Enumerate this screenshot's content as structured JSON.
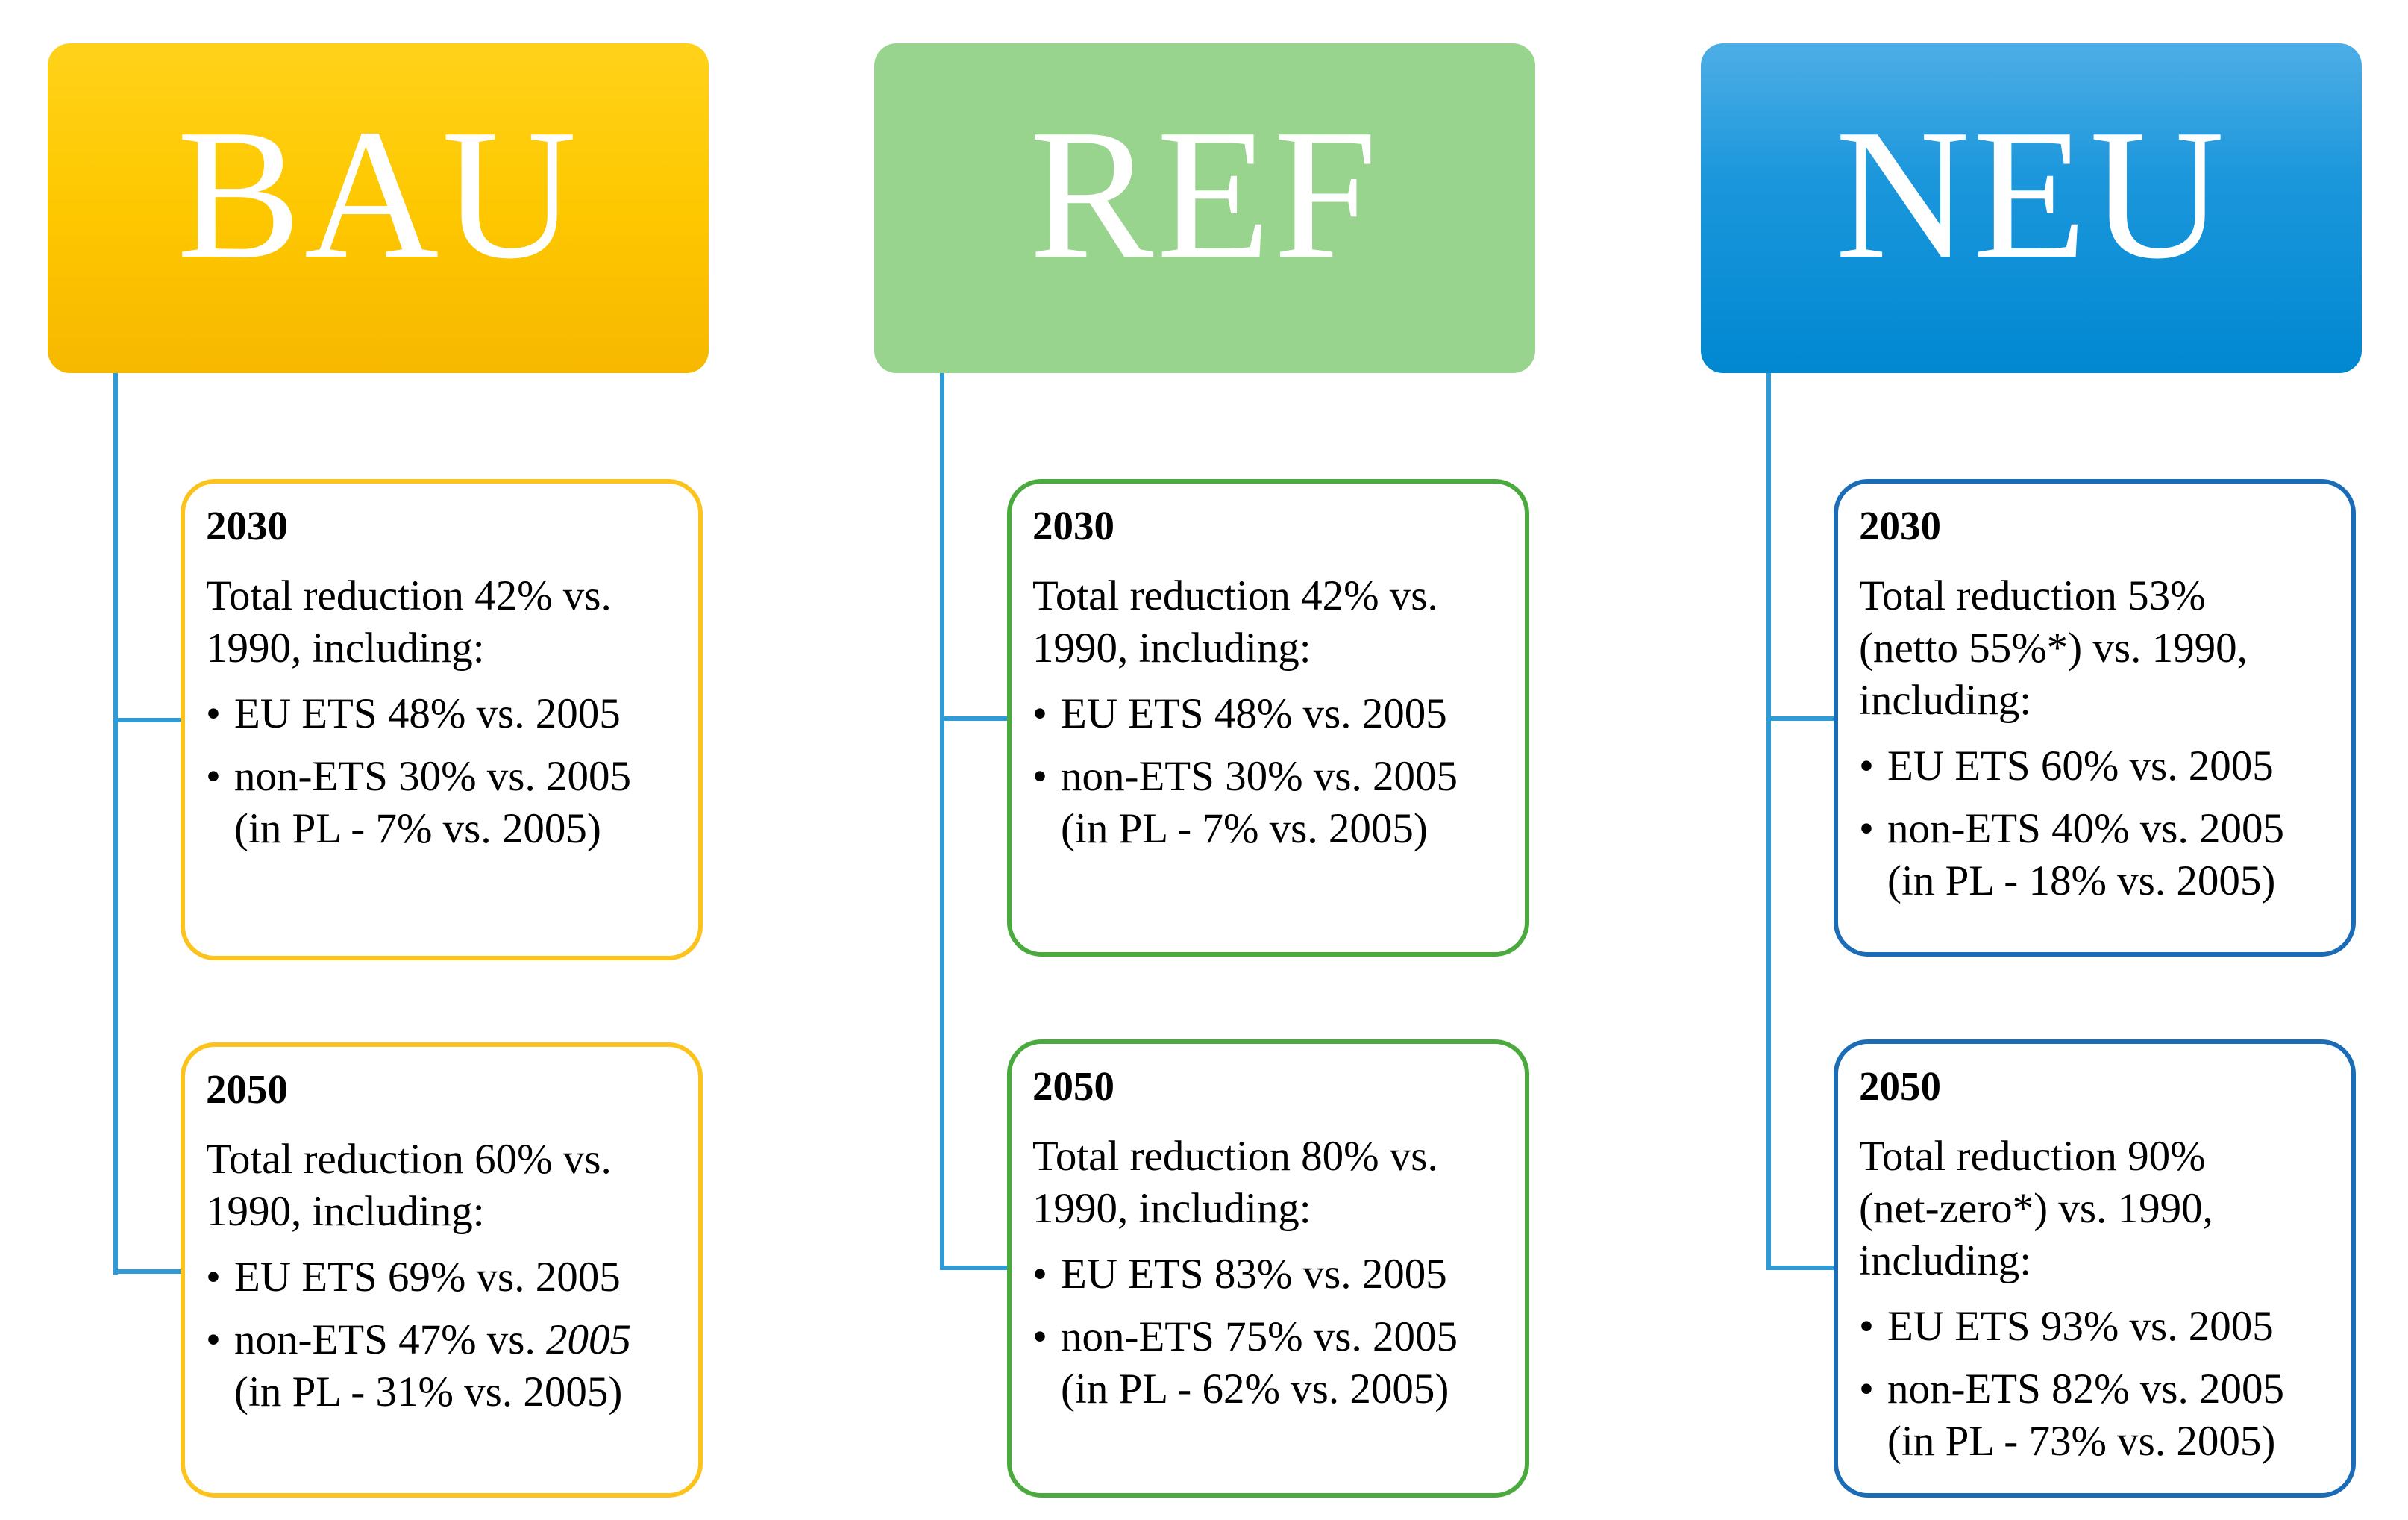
{
  "scenarios": [
    {
      "label": "BAU",
      "y2030": {
        "year": "2030",
        "total": [
          "Total reduction 42% vs.",
          "1990, including:"
        ],
        "ets": "EU ETS 48% vs. 2005",
        "non_ets": "non-ETS 30% vs. 2005",
        "pl": "(in PL - 7% vs. 2005)"
      },
      "y2050": {
        "year": "2050",
        "total": [
          "Total reduction 60% vs.",
          "1990, including:"
        ],
        "ets": "EU ETS 69% vs. 2005",
        "non_ets_main": "non-ETS 47% vs.",
        "non_ets_year": "2005",
        "pl": "(in PL - 31% vs. 2005)"
      }
    },
    {
      "label": "REF",
      "y2030": {
        "year": "2030",
        "total": [
          "Total reduction 42% vs.",
          "1990, including:"
        ],
        "ets": "EU ETS 48% vs. 2005",
        "non_ets": "non-ETS 30% vs. 2005",
        "pl": "(in PL - 7% vs. 2005)"
      },
      "y2050": {
        "year": "2050",
        "total": [
          "Total reduction 80% vs.",
          "1990, including:"
        ],
        "ets": "EU ETS 83% vs. 2005",
        "non_ets": "non-ETS 75% vs. 2005",
        "pl": "(in PL - 62% vs. 2005)"
      }
    },
    {
      "label": "NEU",
      "y2030": {
        "year": "2030",
        "total": [
          "Total reduction 53%",
          "(netto 55%*) vs. 1990,",
          "including:"
        ],
        "ets": "EU ETS 60% vs. 2005",
        "non_ets": "non-ETS 40% vs. 2005",
        "pl": "(in PL - 18% vs. 2005)"
      },
      "y2050": {
        "year": "2050",
        "total": [
          "Total reduction 90%",
          "(net-zero*) vs. 1990,",
          "including:"
        ],
        "ets": "EU ETS 93% vs. 2005",
        "non_ets": "non-ETS 82% vs. 2005",
        "pl": "(in PL - 73% vs. 2005)"
      }
    }
  ],
  "bullet_symbol": "•",
  "colors": {
    "bau": "#fec800",
    "ref": "#98d48d",
    "neu": "#0a8fd6",
    "connector": "#2e9ad6"
  }
}
